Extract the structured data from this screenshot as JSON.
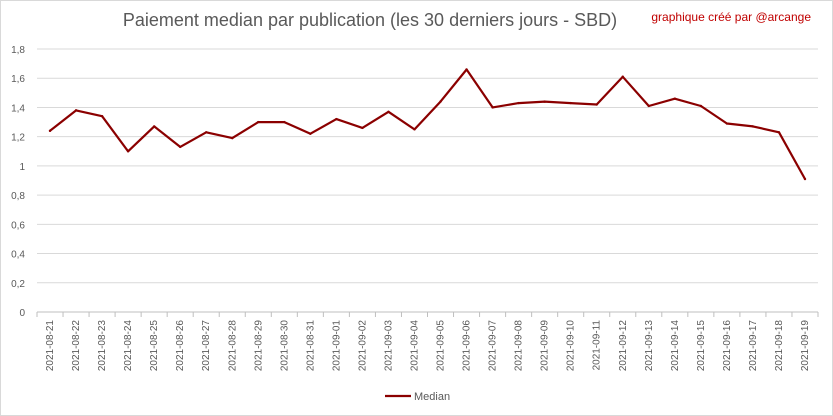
{
  "credit": "graphique créé par @arcange",
  "chart_data": {
    "type": "line",
    "title": "Paiement median par publication (les 30 derniers jours - SBD)",
    "xlabel": "",
    "ylabel": "",
    "ylim": [
      0,
      1.8
    ],
    "yticks": [
      0,
      0.2,
      0.4,
      0.6,
      0.8,
      1,
      1.2,
      1.4,
      1.6,
      1.8
    ],
    "ytick_labels": [
      "0",
      "0,2",
      "0,4",
      "0,6",
      "0,8",
      "1",
      "1,2",
      "1,4",
      "1,6",
      "1,8"
    ],
    "grid": "horizontal",
    "legend": "bottom",
    "categories": [
      "2021-08-21",
      "2021-08-22",
      "2021-08-23",
      "2021-08-24",
      "2021-08-25",
      "2021-08-26",
      "2021-08-27",
      "2021-08-28",
      "2021-08-29",
      "2021-08-30",
      "2021-08-31",
      "2021-09-01",
      "2021-09-02",
      "2021-09-03",
      "2021-09-04",
      "2021-09-05",
      "2021-09-06",
      "2021-09-07",
      "2021-09-08",
      "2021-09-09",
      "2021-09-10",
      "2021-09-11",
      "2021-09-12",
      "2021-09-13",
      "2021-09-14",
      "2021-09-15",
      "2021-09-16",
      "2021-09-17",
      "2021-09-18",
      "2021-09-19"
    ],
    "series": [
      {
        "name": "Median",
        "color": "#8b0000",
        "values": [
          1.24,
          1.38,
          1.34,
          1.1,
          1.27,
          1.13,
          1.23,
          1.19,
          1.3,
          1.3,
          1.22,
          1.32,
          1.26,
          1.37,
          1.25,
          1.44,
          1.66,
          1.4,
          1.43,
          1.44,
          1.43,
          1.42,
          1.61,
          1.41,
          1.46,
          1.41,
          1.29,
          1.27,
          1.23,
          0.91
        ]
      }
    ]
  }
}
